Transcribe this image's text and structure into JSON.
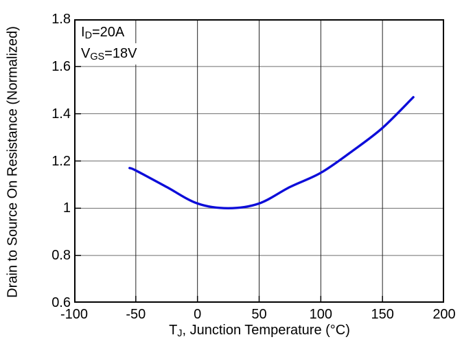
{
  "chart_data": {
    "type": "line",
    "title": "",
    "xlabel": "T_J, Junction Temperature (°C)",
    "xlabel_parts": {
      "pre": "T",
      "sub": "J",
      "post": ", Junction Temperature (°C)"
    },
    "ylabel": "Drain to Source On Resistance (Normalized)",
    "xlim": [
      -100,
      200
    ],
    "ylim": [
      0.6,
      1.8
    ],
    "x_ticks": [
      -100,
      -50,
      0,
      50,
      100,
      150,
      200
    ],
    "x_tick_labels": [
      "-100",
      "-50",
      "0",
      "50",
      "100",
      "150",
      "200"
    ],
    "y_ticks": [
      0.6,
      0.8,
      1.0,
      1.2,
      1.4,
      1.6,
      1.8
    ],
    "y_tick_labels": [
      "0.6",
      "0.8",
      "1",
      "1.2",
      "1.4",
      "1.6",
      "1.8"
    ],
    "grid": "on",
    "legend": "none",
    "series": [
      {
        "name": "normalized-rdson-vs-junction-temperature",
        "x": [
          -55,
          -50,
          -25,
          0,
          25,
          50,
          75,
          100,
          125,
          150,
          175
        ],
        "y": [
          1.17,
          1.16,
          1.09,
          1.02,
          1.0,
          1.02,
          1.09,
          1.15,
          1.24,
          1.34,
          1.47
        ],
        "color": "#0d0dd9"
      }
    ],
    "annotations": [
      {
        "pre": "I",
        "sub": "D",
        "post": "=20A"
      },
      {
        "pre": "V",
        "sub": "GS",
        "post": "=18V"
      }
    ]
  },
  "colors": {
    "curve": "#0d0dd9",
    "axis_border": "#000000",
    "h_gridline": "#6e6e6e",
    "v_gridline": "#222222",
    "text": "#000000",
    "background": "#ffffff"
  }
}
